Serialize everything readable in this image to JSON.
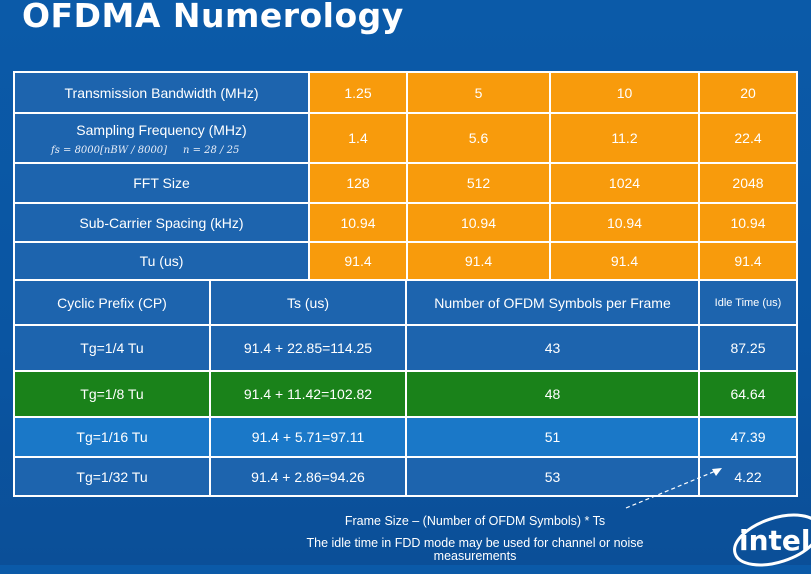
{
  "title": "OFDMA Numerology",
  "top_table": {
    "rows": [
      {
        "label": "Transmission Bandwidth (MHz)",
        "values": [
          "1.25",
          "5",
          "10",
          "20"
        ]
      },
      {
        "label": "Sampling Frequency (MHz)",
        "formula": "fs = 8000[nBW / 8000]     n = 28 / 25",
        "values": [
          "1.4",
          "5.6",
          "11.2",
          "22.4"
        ]
      },
      {
        "label": "FFT Size",
        "values": [
          "128",
          "512",
          "1024",
          "2048"
        ]
      },
      {
        "label": "Sub-Carrier Spacing (kHz)",
        "values": [
          "10.94",
          "10.94",
          "10.94",
          "10.94"
        ]
      },
      {
        "label": "Tu (us)",
        "values": [
          "91.4",
          "91.4",
          "91.4",
          "91.4"
        ]
      }
    ]
  },
  "bottom_table": {
    "headers": [
      "Cyclic Prefix (CP)",
      "Ts (us)",
      "Number of OFDM Symbols per Frame",
      "Idle Time (us)"
    ],
    "rows": [
      [
        "Tg=1/4 Tu",
        "91.4 + 22.85=114.25",
        "43",
        "87.25"
      ],
      [
        "Tg=1/8 Tu",
        "91.4 + 11.42=102.82",
        "48",
        "64.64"
      ],
      [
        "Tg=1/16 Tu",
        "91.4 + 5.71=97.11",
        "51",
        "47.39"
      ],
      [
        "Tg=1/32 Tu",
        "91.4 + 2.86=94.26",
        "53",
        "4.22"
      ]
    ]
  },
  "footer": {
    "line1": "Frame Size – (Number of OFDM Symbols) * Ts",
    "line2": "The idle time in FDD mode may be used for channel or noise",
    "line3": "measurements"
  },
  "logo_text": "intel",
  "colors": {
    "background": "#0b5aa8",
    "label_cells": "#1d64ae",
    "value_cells": "#f89b0c",
    "highlight_row": "#1a821a",
    "light_row": "#1a78c8"
  }
}
